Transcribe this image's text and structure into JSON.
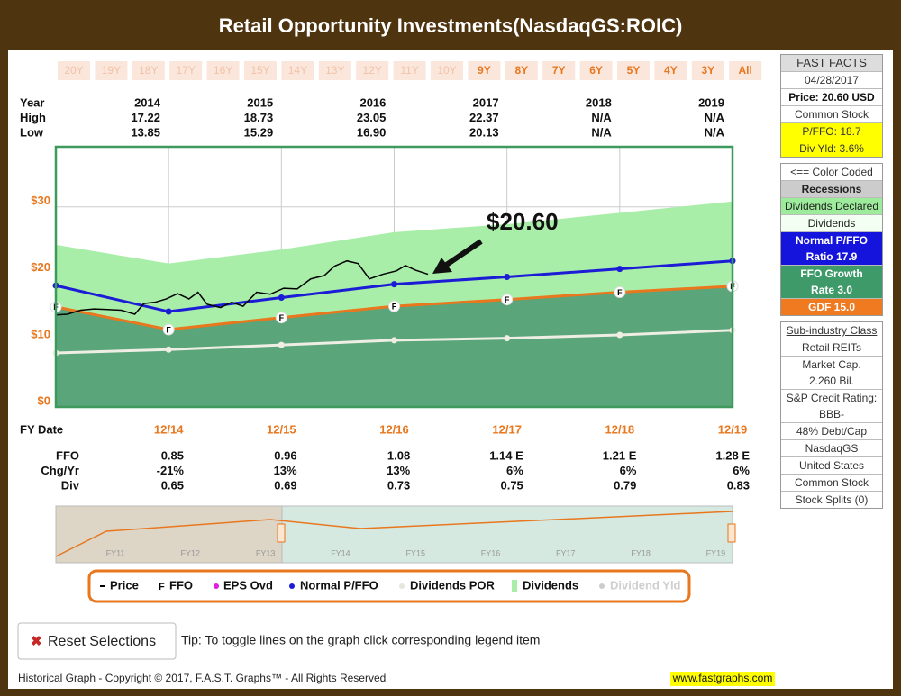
{
  "header": {
    "title": "Retail Opportunity Investments(NasdaqGS:ROIC)"
  },
  "range_buttons": [
    {
      "label": "20Y",
      "enabled": false
    },
    {
      "label": "19Y",
      "enabled": false
    },
    {
      "label": "18Y",
      "enabled": false
    },
    {
      "label": "17Y",
      "enabled": false
    },
    {
      "label": "16Y",
      "enabled": false
    },
    {
      "label": "15Y",
      "enabled": false
    },
    {
      "label": "14Y",
      "enabled": false
    },
    {
      "label": "13Y",
      "enabled": false
    },
    {
      "label": "12Y",
      "enabled": false
    },
    {
      "label": "11Y",
      "enabled": false
    },
    {
      "label": "10Y",
      "enabled": false
    },
    {
      "label": "9Y",
      "enabled": true
    },
    {
      "label": "8Y",
      "enabled": true
    },
    {
      "label": "7Y",
      "enabled": true
    },
    {
      "label": "6Y",
      "enabled": true
    },
    {
      "label": "5Y",
      "enabled": true
    },
    {
      "label": "4Y",
      "enabled": true
    },
    {
      "label": "3Y",
      "enabled": true
    },
    {
      "label": "All",
      "enabled": true
    }
  ],
  "year_table": {
    "labels": [
      "Year",
      "High",
      "Low"
    ],
    "columns": [
      {
        "year": "2014",
        "high": "17.22",
        "low": "13.85"
      },
      {
        "year": "2015",
        "high": "18.73",
        "low": "15.29"
      },
      {
        "year": "2016",
        "high": "23.05",
        "low": "16.90"
      },
      {
        "year": "2017",
        "high": "22.37",
        "low": "20.13"
      },
      {
        "year": "2018",
        "high": "N/A",
        "low": "N/A"
      },
      {
        "year": "2019",
        "high": "N/A",
        "low": "N/A"
      }
    ]
  },
  "chart_data": {
    "type": "line",
    "xlabel": "FY Date",
    "xlim": [
      2013,
      2019
    ],
    "xticks": [
      {
        "value": 2014,
        "label": "12/14"
      },
      {
        "value": 2015,
        "label": "12/15"
      },
      {
        "value": 2016,
        "label": "12/16"
      },
      {
        "value": 2017,
        "label": "12/17"
      },
      {
        "value": 2018,
        "label": "12/18"
      },
      {
        "value": 2019,
        "label": "12/19"
      }
    ],
    "ylim": [
      0,
      39
    ],
    "yticks": [
      {
        "value": 0,
        "label": "$0"
      },
      {
        "value": 10,
        "label": "$10"
      },
      {
        "value": 20,
        "label": "$20"
      },
      {
        "value": 30,
        "label": "$30"
      }
    ],
    "grid": true,
    "annotation": "$20.60",
    "series": [
      {
        "name": "Price",
        "color": "#000000",
        "style": "line",
        "x": [
          2013.0,
          2013.1,
          2013.22,
          2013.34,
          2013.46,
          2013.58,
          2013.7,
          2013.78,
          2013.88,
          2013.98,
          2014.08,
          2014.18,
          2014.26,
          2014.34,
          2014.46,
          2014.56,
          2014.66,
          2014.78,
          2014.9,
          2015.02,
          2015.14,
          2015.26,
          2015.38,
          2015.47,
          2015.58,
          2015.68,
          2015.78,
          2015.9,
          2016.02,
          2016.1,
          2016.19,
          2016.3
        ],
        "values": [
          13.8,
          13.9,
          14.5,
          14.7,
          14.6,
          14.5,
          13.9,
          15.5,
          15.7,
          16.2,
          17.0,
          16.2,
          17.2,
          15.4,
          14.9,
          15.7,
          15.1,
          17.2,
          16.9,
          17.8,
          17.7,
          19.2,
          19.7,
          21.1,
          21.9,
          21.5,
          19.2,
          19.9,
          20.4,
          21.2,
          20.5,
          19.9
        ]
      },
      {
        "name": "FFO",
        "color": "#e8771e",
        "area_color": "#5ba57a",
        "style": "line",
        "marker": "F",
        "x": [
          2013,
          2014,
          2015,
          2016,
          2017,
          2018,
          2019
        ],
        "values": [
          15.0,
          11.6,
          13.4,
          15.1,
          16.1,
          17.2,
          18.1
        ]
      },
      {
        "name": "Normal P/FFO",
        "color": "#1c1cd6",
        "style": "line",
        "marker": "dot",
        "x": [
          2013,
          2014,
          2015,
          2016,
          2017,
          2018,
          2019
        ],
        "values": [
          18.2,
          14.3,
          16.4,
          18.4,
          19.5,
          20.7,
          21.9
        ]
      },
      {
        "name": "Dividends POR",
        "color": "#eeeee4",
        "style": "line",
        "marker": "dot",
        "x": [
          2013,
          2014,
          2015,
          2016,
          2017,
          2018,
          2019
        ],
        "values": [
          8.1,
          8.6,
          9.3,
          10.0,
          10.3,
          10.8,
          11.5
        ]
      },
      {
        "name": "Dividends",
        "color": "#a8eea8",
        "style": "area",
        "x": [
          2013,
          2014,
          2015,
          2016,
          2017,
          2018,
          2019
        ],
        "values": [
          24.3,
          21.5,
          23.6,
          26.2,
          27.4,
          29.1,
          30.8
        ]
      }
    ],
    "legend_extra": [
      "EPS Ovd",
      "Dividend Yld"
    ]
  },
  "fundamentals": {
    "labels": [
      "FFO",
      "Chg/Yr",
      "Div"
    ],
    "columns": [
      {
        "ffo": "0.85",
        "chg": "-21%",
        "div": "0.65"
      },
      {
        "ffo": "0.96",
        "chg": "13%",
        "div": "0.69"
      },
      {
        "ffo": "1.08",
        "chg": "13%",
        "div": "0.73"
      },
      {
        "ffo": "1.14 E",
        "chg": "6%",
        "div": "0.75"
      },
      {
        "ffo": "1.21 E",
        "chg": "6%",
        "div": "0.79"
      },
      {
        "ffo": "1.28 E",
        "chg": "6%",
        "div": "0.83"
      }
    ]
  },
  "navigator": {
    "labels": [
      "FY11",
      "FY12",
      "FY13",
      "FY14",
      "FY15",
      "FY16",
      "FY17",
      "FY18",
      "FY19"
    ]
  },
  "fast_facts": [
    [
      {
        "style": "heading",
        "lines": [
          "FAST FACTS"
        ]
      },
      {
        "style": "plain",
        "lines": [
          "04/28/2017"
        ]
      },
      {
        "style": "bold",
        "lines": [
          "Price: 20.60 USD"
        ]
      },
      {
        "style": "plain",
        "lines": [
          "Common Stock"
        ]
      },
      {
        "style": "yellow",
        "lines": [
          "P/FFO: 18.7"
        ]
      },
      {
        "style": "yellow",
        "lines": [
          "Div Yld: 3.6%"
        ]
      }
    ],
    [
      {
        "style": "plain",
        "lines": [
          "<== Color Coded"
        ]
      },
      {
        "style": "gray",
        "lines": [
          "Recessions"
        ]
      },
      {
        "style": "green-light",
        "lines": [
          "Dividends Declared"
        ]
      },
      {
        "style": "green-pale",
        "lines": [
          "Dividends"
        ]
      },
      {
        "style": "blue",
        "lines": [
          "Normal P/FFO",
          "Ratio 17.9"
        ]
      },
      {
        "style": "green-dark",
        "lines": [
          "FFO Growth",
          "Rate 3.0"
        ]
      },
      {
        "style": "orange",
        "lines": [
          "GDF 15.0"
        ]
      }
    ],
    [
      {
        "style": "underline",
        "lines": [
          "Sub-industry Class"
        ]
      },
      {
        "style": "plain",
        "lines": [
          "Retail REITs"
        ]
      },
      {
        "style": "plain",
        "lines": [
          "Market Cap.",
          "2.260 Bil."
        ]
      },
      {
        "style": "plain",
        "lines": [
          "S&P Credit Rating:",
          "BBB-"
        ]
      },
      {
        "style": "plain",
        "lines": [
          "48% Debt/Cap"
        ]
      },
      {
        "style": "plain",
        "lines": [
          "NasdaqGS"
        ]
      },
      {
        "style": "plain",
        "lines": [
          "United States"
        ]
      },
      {
        "style": "plain",
        "lines": [
          "Common Stock"
        ]
      },
      {
        "style": "plain",
        "lines": [
          "Stock Splits (0)"
        ]
      }
    ]
  ],
  "footer": {
    "reset_button": "Reset Selections",
    "tip": "Tip: To toggle lines on the graph click corresponding legend item",
    "copyright": "Historical Graph - Copyright © 2017, F.A.S.T. Graphs™ - All Rights Reserved",
    "website": "www.fastgraphs.com"
  }
}
